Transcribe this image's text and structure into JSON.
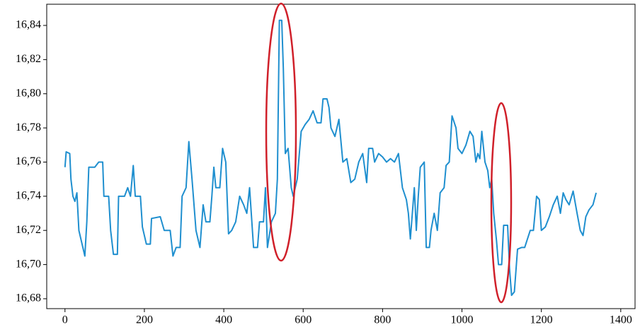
{
  "chart_data": {
    "type": "line",
    "x": [
      0,
      3,
      12,
      15,
      20,
      25,
      30,
      35,
      45,
      50,
      55,
      60,
      75,
      85,
      95,
      98,
      110,
      115,
      122,
      132,
      135,
      150,
      158,
      165,
      172,
      177,
      190,
      195,
      205,
      215,
      218,
      240,
      250,
      265,
      272,
      280,
      290,
      295,
      305,
      312,
      320,
      330,
      340,
      348,
      355,
      365,
      370,
      375,
      380,
      390,
      397,
      405,
      412,
      420,
      430,
      440,
      450,
      458,
      465,
      475,
      485,
      490,
      500,
      505,
      510,
      520,
      530,
      535,
      540,
      546,
      550,
      555,
      562,
      570,
      575,
      580,
      585,
      595,
      605,
      615,
      625,
      635,
      645,
      650,
      660,
      665,
      670,
      680,
      690,
      700,
      710,
      720,
      730,
      740,
      750,
      760,
      765,
      775,
      780,
      790,
      800,
      810,
      820,
      830,
      840,
      850,
      860,
      865,
      870,
      875,
      880,
      885,
      890,
      895,
      905,
      910,
      918,
      922,
      930,
      938,
      945,
      955,
      960,
      968,
      975,
      985,
      990,
      1000,
      1010,
      1020,
      1028,
      1035,
      1040,
      1045,
      1050,
      1058,
      1065,
      1070,
      1075,
      1080,
      1087,
      1092,
      1100,
      1105,
      1115,
      1120,
      1125,
      1132,
      1140,
      1150,
      1158,
      1165,
      1172,
      1180,
      1188,
      1195,
      1200,
      1210,
      1220,
      1230,
      1240,
      1248,
      1255,
      1262,
      1270,
      1280,
      1290,
      1298,
      1305,
      1312,
      1320,
      1330,
      1338
    ],
    "series": [
      {
        "color": "#1f8fcf",
        "values": [
          16.757,
          16.766,
          16.765,
          16.75,
          16.74,
          16.737,
          16.742,
          16.72,
          16.71,
          16.705,
          16.725,
          16.757,
          16.757,
          16.76,
          16.76,
          16.74,
          16.74,
          16.72,
          16.706,
          16.706,
          16.74,
          16.74,
          16.745,
          16.74,
          16.758,
          16.74,
          16.74,
          16.722,
          16.712,
          16.712,
          16.727,
          16.728,
          16.72,
          16.72,
          16.705,
          16.71,
          16.71,
          16.74,
          16.745,
          16.772,
          16.75,
          16.72,
          16.71,
          16.735,
          16.725,
          16.725,
          16.74,
          16.757,
          16.745,
          16.745,
          16.768,
          16.76,
          16.718,
          16.72,
          16.725,
          16.74,
          16.735,
          16.73,
          16.745,
          16.71,
          16.71,
          16.725,
          16.725,
          16.745,
          16.71,
          16.725,
          16.73,
          16.75,
          16.843,
          16.843,
          16.815,
          16.765,
          16.768,
          16.745,
          16.74,
          16.745,
          16.75,
          16.778,
          16.782,
          16.785,
          16.79,
          16.783,
          16.783,
          16.797,
          16.797,
          16.792,
          16.78,
          16.775,
          16.785,
          16.76,
          16.762,
          16.748,
          16.75,
          16.76,
          16.765,
          16.748,
          16.768,
          16.768,
          16.76,
          16.765,
          16.763,
          16.76,
          16.762,
          16.76,
          16.765,
          16.745,
          16.738,
          16.73,
          16.715,
          16.73,
          16.745,
          16.72,
          16.74,
          16.757,
          16.76,
          16.71,
          16.71,
          16.72,
          16.73,
          16.72,
          16.742,
          16.745,
          16.758,
          16.76,
          16.787,
          16.78,
          16.768,
          16.765,
          16.77,
          16.778,
          16.775,
          16.76,
          16.765,
          16.762,
          16.778,
          16.76,
          16.755,
          16.745,
          16.75,
          16.73,
          16.714,
          16.7,
          16.7,
          16.723,
          16.723,
          16.697,
          16.682,
          16.684,
          16.709,
          16.71,
          16.71,
          16.715,
          16.72,
          16.72,
          16.74,
          16.738,
          16.72,
          16.722,
          16.728,
          16.735,
          16.74,
          16.73,
          16.742,
          16.738,
          16.735,
          16.743,
          16.73,
          16.72,
          16.717,
          16.728,
          16.732,
          16.735,
          16.742
        ]
      }
    ],
    "xlim": [
      -46,
      1436
    ],
    "ylim": [
      16.6742,
      16.8524
    ],
    "xticks": [
      0,
      200,
      400,
      600,
      800,
      1000,
      1200,
      1400
    ],
    "yticks": [
      {
        "value": 16.68,
        "label": "16,68"
      },
      {
        "value": 16.7,
        "label": "16,70"
      },
      {
        "value": 16.72,
        "label": "16,72"
      },
      {
        "value": 16.74,
        "label": "16,74"
      },
      {
        "value": 16.76,
        "label": "16,76"
      },
      {
        "value": 16.78,
        "label": "16,78"
      },
      {
        "value": 16.8,
        "label": "16,80"
      },
      {
        "value": 16.82,
        "label": "16,82"
      },
      {
        "value": 16.84,
        "label": "16,84"
      }
    ]
  }
}
